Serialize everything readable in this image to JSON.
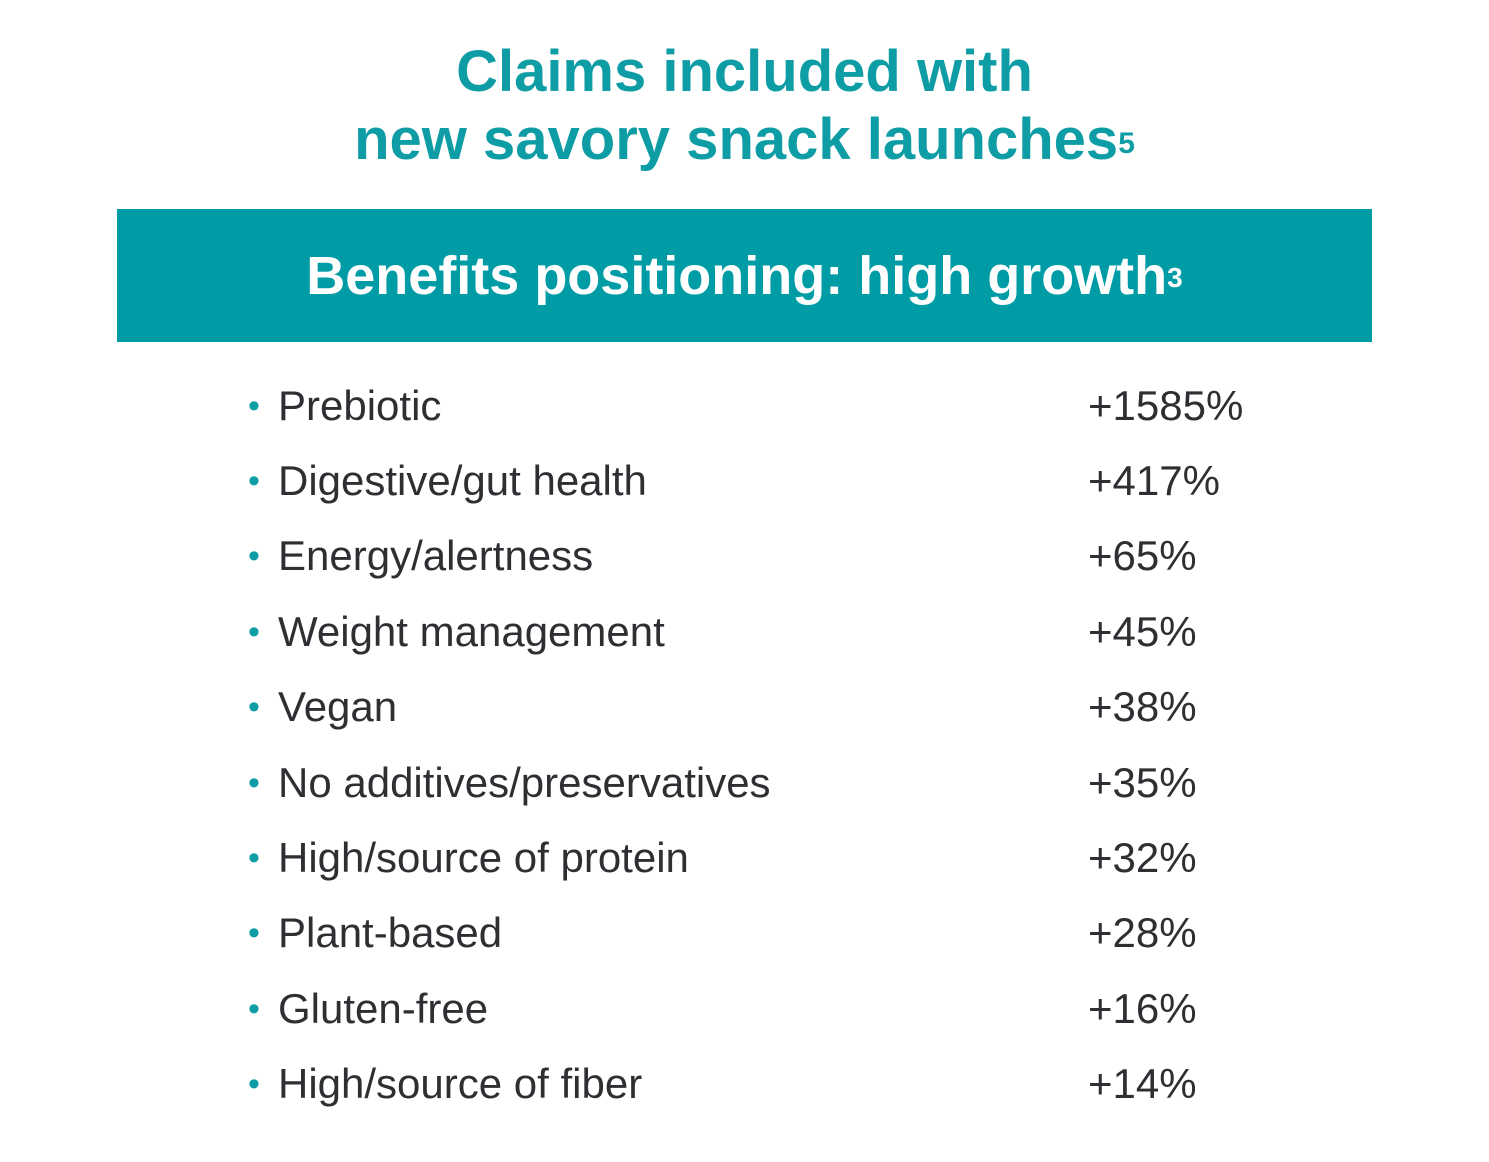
{
  "title": {
    "line1": "Claims included with",
    "line2": "new savory snack launches",
    "footnote": "5"
  },
  "banner": {
    "text": "Benefits positioning: high growth",
    "footnote": "3"
  },
  "bullet_symbol": "•",
  "claims": [
    {
      "label": "Prebiotic",
      "value": "+1585%"
    },
    {
      "label": "Digestive/gut health",
      "value": "+417%"
    },
    {
      "label": "Energy/alertness",
      "value": "+65%"
    },
    {
      "label": "Weight management",
      "value": "+45%"
    },
    {
      "label": "Vegan",
      "value": "+38%"
    },
    {
      "label": "No additives/preservatives",
      "value": "+35%"
    },
    {
      "label": "High/source of protein",
      "value": "+32%"
    },
    {
      "label": "Plant-based",
      "value": "+28%"
    },
    {
      "label": "Gluten-free",
      "value": "+16%"
    },
    {
      "label": "High/source of fiber",
      "value": "+14%"
    }
  ],
  "colors": {
    "accent": "#009ca6",
    "title": "#0f9da5",
    "text": "#2d2f33",
    "banner_text": "#ffffff"
  }
}
